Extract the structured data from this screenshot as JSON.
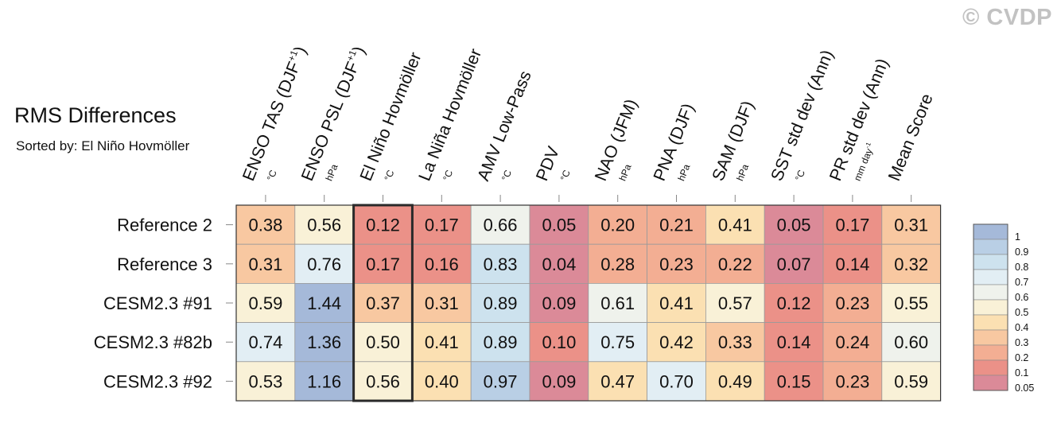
{
  "watermark": "© CVDP",
  "title": "RMS Differences",
  "subtitle": "Sorted by: El Niño Hovmöller",
  "chart_data": {
    "type": "heatmap",
    "title": "RMS Differences",
    "subtitle": "Sorted by: El Niño Hovmöller",
    "rows": [
      "Reference 2",
      "Reference 3",
      "CESM2.3 #91",
      "CESM2.3 #82b",
      "CESM2.3 #92"
    ],
    "columns": [
      {
        "label": "ENSO TAS (DJF",
        "sup": "+1",
        "tail": ")",
        "unit": "°C"
      },
      {
        "label": "ENSO PSL (DJF",
        "sup": "+1",
        "tail": ")",
        "unit": "hPa"
      },
      {
        "label": "El Niño Hovmöller",
        "unit": "°C"
      },
      {
        "label": "La Niña Hovmöller",
        "unit": "°C"
      },
      {
        "label": "AMV Low-Pass",
        "unit": "°C"
      },
      {
        "label": "PDV",
        "unit": "°C"
      },
      {
        "label": "NAO (JFM)",
        "unit": "hPa"
      },
      {
        "label": "PNA (DJF)",
        "unit": "hPa"
      },
      {
        "label": "SAM (DJF)",
        "unit": "hPa"
      },
      {
        "label": "SST std dev (Ann)",
        "unit": "°C"
      },
      {
        "label": "PR std dev (Ann)",
        "unit": "mm day",
        "unit_sup": "-1"
      },
      {
        "label": "Mean Score",
        "unit": ""
      }
    ],
    "values": [
      [
        "0.38",
        "0.56",
        "0.12",
        "0.17",
        "0.66",
        "0.05",
        "0.20",
        "0.21",
        "0.41",
        "0.05",
        "0.17",
        "0.31"
      ],
      [
        "0.31",
        "0.76",
        "0.17",
        "0.16",
        "0.83",
        "0.04",
        "0.28",
        "0.23",
        "0.22",
        "0.07",
        "0.14",
        "0.32"
      ],
      [
        "0.59",
        "1.44",
        "0.37",
        "0.31",
        "0.89",
        "0.09",
        "0.61",
        "0.41",
        "0.57",
        "0.12",
        "0.23",
        "0.55"
      ],
      [
        "0.74",
        "1.36",
        "0.50",
        "0.41",
        "0.89",
        "0.10",
        "0.75",
        "0.42",
        "0.33",
        "0.14",
        "0.24",
        "0.60"
      ],
      [
        "0.53",
        "1.16",
        "0.56",
        "0.40",
        "0.97",
        "0.09",
        "0.47",
        "0.70",
        "0.49",
        "0.15",
        "0.23",
        "0.59"
      ]
    ],
    "highlighted_column": 2,
    "colorbar": {
      "levels": [
        "1",
        "0.9",
        "0.8",
        "0.7",
        "0.6",
        "0.5",
        "0.4",
        "0.3",
        "0.2",
        "0.1",
        "0.05"
      ],
      "colors": [
        "#a5b9d9",
        "#b9cfe5",
        "#cde2ee",
        "#e2eef4",
        "#eff2ec",
        "#f9f1d7",
        "#fbe0b2",
        "#f8c8a1",
        "#f3ae93",
        "#eb9188",
        "#db8a98"
      ],
      "legend_position": "right"
    }
  }
}
